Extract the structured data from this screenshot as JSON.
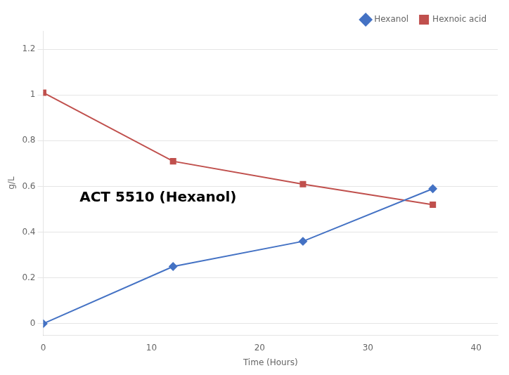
{
  "chart_data": {
    "type": "line",
    "x_label": "Time (Hours)",
    "y_label": "g/L",
    "annotation": "ACT 5510 (Hexanol)",
    "x": [
      0,
      12,
      24,
      36
    ],
    "series": [
      {
        "name": "Hexanol",
        "color": "#4472C4",
        "marker": "diamond",
        "values": [
          0.0,
          0.25,
          0.36,
          0.59
        ]
      },
      {
        "name": "Hexnoic acid",
        "color": "#C0504D",
        "marker": "square",
        "values": [
          1.01,
          0.71,
          0.61,
          0.52
        ]
      }
    ],
    "xlim": [
      0,
      42
    ],
    "xticks": [
      0,
      10,
      20,
      30,
      40
    ],
    "ylim": [
      -0.05,
      1.28
    ],
    "yticks": [
      0,
      0.2,
      0.4,
      0.6,
      0.8,
      1,
      1.2
    ],
    "grid": "y",
    "legend": "upper right"
  }
}
